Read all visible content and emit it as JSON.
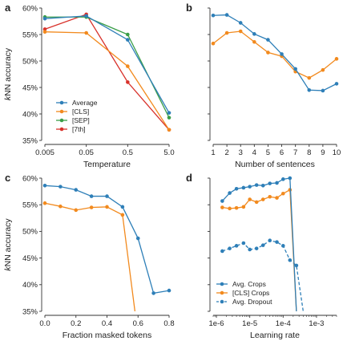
{
  "chart_data": [
    {
      "panel": "a",
      "type": "line",
      "xscale": "log",
      "x": [
        0.005,
        0.05,
        0.5,
        5.0
      ],
      "xticks": [
        "0.005",
        "0.05",
        "0.5",
        "5.0"
      ],
      "xlabel": "Temperature",
      "ylabel_prefix": "k",
      "ylabel_rest": "NN accuracy",
      "ylim": [
        35,
        60
      ],
      "yticks": [
        "35%",
        "40%",
        "45%",
        "50%",
        "55%",
        "60%"
      ],
      "legend_position": "lower-left",
      "series": [
        {
          "name": "Average",
          "color": "#2e7fb8",
          "values": [
            58.0,
            58.5,
            54.0,
            40.2
          ]
        },
        {
          "name": "[CLS]",
          "color": "#f28a1e",
          "values": [
            55.5,
            55.3,
            49.0,
            37.0
          ]
        },
        {
          "name": "[SEP]",
          "color": "#3a9e48",
          "values": [
            58.3,
            58.3,
            55.0,
            39.3
          ]
        },
        {
          "name": "[7th]",
          "color": "#d8312a",
          "values": [
            56.0,
            58.8,
            46.0,
            37.0
          ]
        }
      ]
    },
    {
      "panel": "b",
      "type": "line",
      "x": [
        1,
        2,
        3,
        4,
        5,
        6,
        7,
        8,
        9,
        10
      ],
      "xticks": [
        "1",
        "2",
        "3",
        "4",
        "5",
        "6",
        "7",
        "8",
        "9",
        "10"
      ],
      "xlabel": "Number of sentences",
      "ylim": [
        35,
        60
      ],
      "series": [
        {
          "color": "#2e7fb8",
          "values": [
            58.6,
            58.7,
            57.2,
            55.1,
            54.0,
            51.3,
            48.5,
            44.5,
            44.4,
            45.7
          ]
        },
        {
          "color": "#f28a1e",
          "values": [
            53.3,
            55.3,
            55.6,
            53.6,
            51.6,
            50.9,
            48.0,
            46.8,
            48.3,
            50.4
          ]
        }
      ]
    },
    {
      "panel": "c",
      "type": "line",
      "x": [
        0.0,
        0.1,
        0.2,
        0.3,
        0.4,
        0.5,
        0.6,
        0.7,
        0.8
      ],
      "xticks": [
        "0.0",
        "0.2",
        "0.4",
        "0.6",
        "0.8"
      ],
      "xtick_values": [
        0.0,
        0.2,
        0.4,
        0.6,
        0.8
      ],
      "xlabel": "Fraction masked tokens",
      "ylabel_prefix": "k",
      "ylabel_rest": "NN accuracy",
      "ylim": [
        35,
        60
      ],
      "yticks": [
        "35%",
        "40%",
        "45%",
        "50%",
        "55%",
        "60%"
      ],
      "series": [
        {
          "color": "#2e7fb8",
          "x": [
            0.0,
            0.1,
            0.2,
            0.3,
            0.4,
            0.5,
            0.6,
            0.7,
            0.8
          ],
          "values": [
            58.6,
            58.4,
            57.8,
            56.6,
            56.6,
            54.6,
            48.7,
            38.4,
            38.9
          ]
        },
        {
          "color": "#f28a1e",
          "x": [
            0.0,
            0.1,
            0.2,
            0.3,
            0.4,
            0.5,
            0.58
          ],
          "values": [
            55.3,
            54.7,
            54.0,
            54.5,
            54.6,
            53.1,
            35.0
          ]
        }
      ]
    },
    {
      "panel": "d",
      "type": "line",
      "xscale": "log",
      "xlim": [
        1e-06,
        0.005
      ],
      "xticks": [
        "1e-6",
        "1e-5",
        "1e-4",
        "1e-3"
      ],
      "xtick_values": [
        1e-06,
        1e-05,
        0.0001,
        0.001
      ],
      "xlabel": "Learning rate",
      "ylim": [
        35,
        60
      ],
      "legend_position": "lower-left",
      "series": [
        {
          "name": "Avg. Crops",
          "color": "#2e7fb8",
          "dashed": false,
          "x": [
            1.5e-06,
            2.5e-06,
            4e-06,
            6.5e-06,
            1e-05,
            1.6e-05,
            2.5e-05,
            4e-05,
            6.5e-05,
            0.0001,
            0.00016,
            0.00025
          ],
          "values": [
            55.7,
            57.2,
            58.0,
            58.2,
            58.4,
            58.7,
            58.6,
            59.0,
            59.1,
            59.8,
            60.0,
            35.0
          ]
        },
        {
          "name": "[CLS] Crops",
          "color": "#f28a1e",
          "dashed": false,
          "x": [
            1.5e-06,
            2.5e-06,
            4e-06,
            6.5e-06,
            1e-05,
            1.6e-05,
            2.5e-05,
            4e-05,
            6.5e-05,
            0.0001,
            0.00016,
            0.00025
          ],
          "values": [
            54.5,
            54.3,
            54.4,
            54.6,
            56.0,
            55.5,
            56.0,
            56.5,
            56.3,
            57.1,
            57.8,
            35.0
          ]
        },
        {
          "name": "Avg. Dropout",
          "color": "#2e7fb8",
          "dashed": true,
          "x": [
            1.5e-06,
            2.5e-06,
            4e-06,
            6.5e-06,
            1e-05,
            1.6e-05,
            2.5e-05,
            4e-05,
            6.5e-05,
            0.0001,
            0.00016,
            0.00025,
            0.0004
          ],
          "values": [
            46.3,
            46.8,
            47.3,
            47.8,
            46.6,
            46.8,
            47.4,
            48.3,
            48.0,
            47.3,
            44.6,
            43.6,
            35.0
          ]
        }
      ]
    }
  ]
}
